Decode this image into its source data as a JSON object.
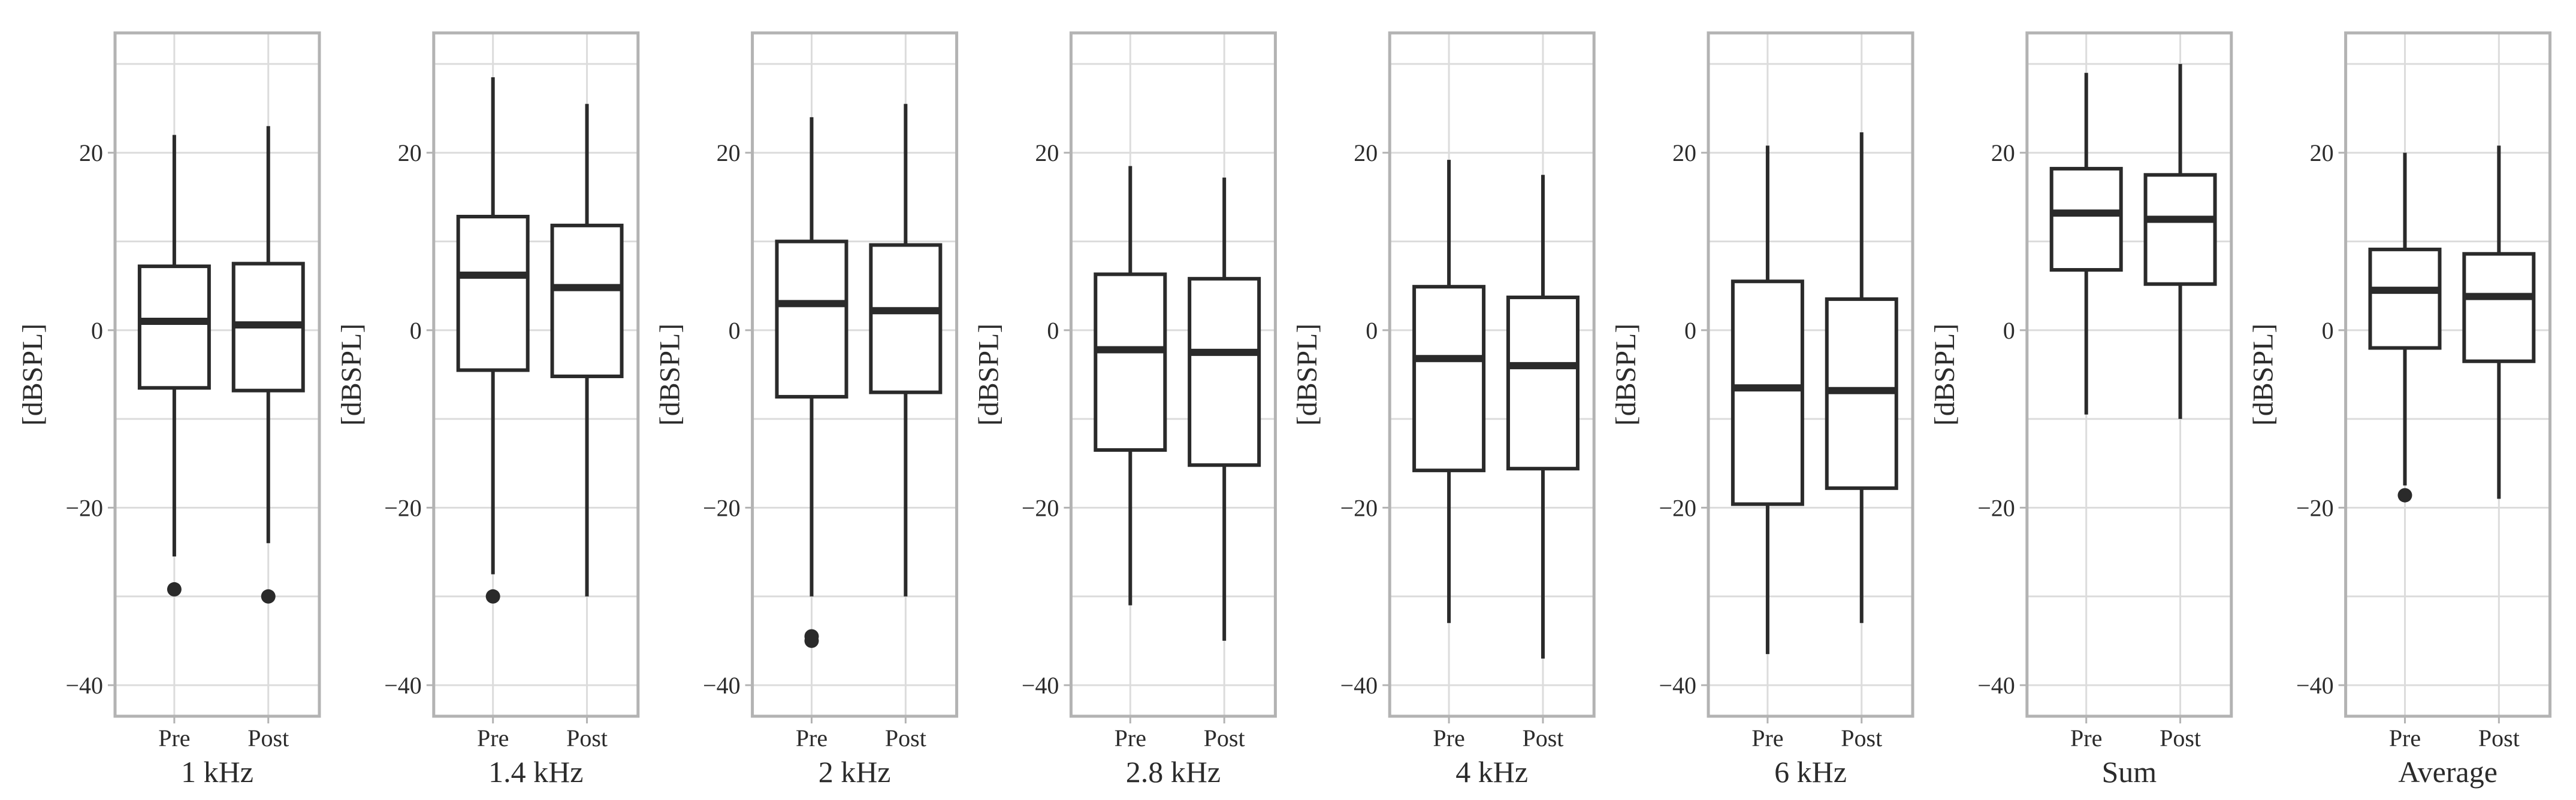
{
  "chart_data": {
    "type": "boxplot",
    "ylabel": "[dBSPL]",
    "ylim": [
      -43.5,
      33.5
    ],
    "yticks": [
      -40,
      -20,
      0,
      20
    ],
    "ytick_labels": [
      "−40",
      "−20",
      "0",
      "20"
    ],
    "categories": [
      "Pre",
      "Post"
    ],
    "grid": true,
    "panels": [
      {
        "xlabel": "1 kHz",
        "boxes": [
          {
            "category": "Pre",
            "whisker_low": -25.5,
            "q1": -6.5,
            "median": 1.0,
            "q3": 7.2,
            "whisker_high": 22.0,
            "outliers": [
              -29.2
            ]
          },
          {
            "category": "Post",
            "whisker_low": -24.0,
            "q1": -6.8,
            "median": 0.6,
            "q3": 7.5,
            "whisker_high": 23.0,
            "outliers": [
              -30.0
            ]
          }
        ]
      },
      {
        "xlabel": "1.4 kHz",
        "boxes": [
          {
            "category": "Pre",
            "whisker_low": -27.5,
            "q1": -4.5,
            "median": 6.2,
            "q3": 12.8,
            "whisker_high": 28.5,
            "outliers": [
              -30.0
            ]
          },
          {
            "category": "Post",
            "whisker_low": -30.0,
            "q1": -5.2,
            "median": 4.8,
            "q3": 11.8,
            "whisker_high": 25.5,
            "outliers": []
          }
        ]
      },
      {
        "xlabel": "2 kHz",
        "boxes": [
          {
            "category": "Pre",
            "whisker_low": -30.0,
            "q1": -7.5,
            "median": 3.0,
            "q3": 10.0,
            "whisker_high": 24.0,
            "outliers": [
              -34.5,
              -35.0
            ]
          },
          {
            "category": "Post",
            "whisker_low": -30.0,
            "q1": -7.0,
            "median": 2.2,
            "q3": 9.6,
            "whisker_high": 25.5,
            "outliers": []
          }
        ]
      },
      {
        "xlabel": "2.8 kHz",
        "boxes": [
          {
            "category": "Pre",
            "whisker_low": -31.0,
            "q1": -13.5,
            "median": -2.2,
            "q3": 6.3,
            "whisker_high": 18.5,
            "outliers": []
          },
          {
            "category": "Post",
            "whisker_low": -35.0,
            "q1": -15.2,
            "median": -2.5,
            "q3": 5.8,
            "whisker_high": 17.2,
            "outliers": []
          }
        ]
      },
      {
        "xlabel": "4 kHz",
        "boxes": [
          {
            "category": "Pre",
            "whisker_low": -33.0,
            "q1": -15.8,
            "median": -3.2,
            "q3": 4.9,
            "whisker_high": 19.2,
            "outliers": []
          },
          {
            "category": "Post",
            "whisker_low": -37.0,
            "q1": -15.6,
            "median": -4.0,
            "q3": 3.7,
            "whisker_high": 17.5,
            "outliers": []
          }
        ]
      },
      {
        "xlabel": "6 kHz",
        "boxes": [
          {
            "category": "Pre",
            "whisker_low": -36.5,
            "q1": -19.6,
            "median": -6.5,
            "q3": 5.5,
            "whisker_high": 20.8,
            "outliers": []
          },
          {
            "category": "Post",
            "whisker_low": -33.0,
            "q1": -17.8,
            "median": -6.8,
            "q3": 3.5,
            "whisker_high": 22.3,
            "outliers": []
          }
        ]
      },
      {
        "xlabel": "Sum",
        "boxes": [
          {
            "category": "Pre",
            "whisker_low": -9.5,
            "q1": 6.8,
            "median": 13.2,
            "q3": 18.2,
            "whisker_high": 29.0,
            "outliers": []
          },
          {
            "category": "Post",
            "whisker_low": -10.0,
            "q1": 5.2,
            "median": 12.5,
            "q3": 17.5,
            "whisker_high": 30.0,
            "outliers": []
          }
        ]
      },
      {
        "xlabel": "Average",
        "boxes": [
          {
            "category": "Pre",
            "whisker_low": -17.5,
            "q1": -2.0,
            "median": 4.5,
            "q3": 9.1,
            "whisker_high": 20.0,
            "outliers": [
              -18.6
            ]
          },
          {
            "category": "Post",
            "whisker_low": -19.0,
            "q1": -3.5,
            "median": 3.8,
            "q3": 8.6,
            "whisker_high": 20.8,
            "outliers": []
          }
        ]
      }
    ]
  }
}
